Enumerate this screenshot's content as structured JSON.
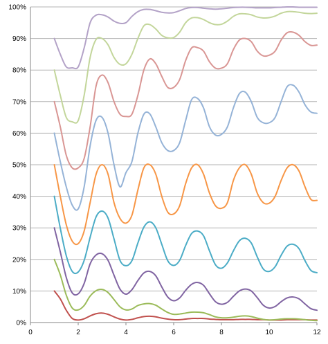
{
  "chart_data": {
    "type": "line",
    "title": "",
    "xlabel": "",
    "ylabel": "",
    "xlim": [
      0,
      12
    ],
    "ylim": [
      0,
      1
    ],
    "x_ticks": [
      "0",
      "2",
      "4",
      "6",
      "8",
      "10",
      "12"
    ],
    "y_ticks": [
      "0%",
      "10%",
      "20%",
      "30%",
      "40%",
      "50%",
      "60%",
      "70%",
      "80%",
      "90%",
      "100%"
    ],
    "grid": "horizontal",
    "legend": "none",
    "x": [
      1,
      1.25,
      1.5,
      1.75,
      2,
      2.25,
      2.5,
      2.75,
      3,
      3.25,
      3.5,
      3.75,
      4,
      4.25,
      4.5,
      4.75,
      5,
      5.25,
      5.5,
      5.75,
      6,
      6.25,
      6.5,
      6.75,
      7,
      7.25,
      7.5,
      7.75,
      8,
      8.25,
      8.5,
      8.75,
      9,
      9.25,
      9.5,
      9.75,
      10,
      10.25,
      10.5,
      10.75,
      11,
      11.25,
      11.5,
      11.75,
      12
    ],
    "series": [
      {
        "color": "#c0504d",
        "values": [
          0.1,
          0.075,
          0.039,
          0.013,
          0.008,
          0.012,
          0.021,
          0.028,
          0.03,
          0.026,
          0.018,
          0.011,
          0.008,
          0.01,
          0.015,
          0.019,
          0.02,
          0.018,
          0.014,
          0.011,
          0.009,
          0.009,
          0.011,
          0.013,
          0.013,
          0.013,
          0.011,
          0.01,
          0.009,
          0.009,
          0.009,
          0.01,
          0.01,
          0.01,
          0.009,
          0.009,
          0.008,
          0.008,
          0.008,
          0.009,
          0.009,
          0.009,
          0.009,
          0.008,
          0.008
        ]
      },
      {
        "color": "#9bbb59",
        "values": [
          0.2,
          0.151,
          0.087,
          0.046,
          0.04,
          0.054,
          0.084,
          0.101,
          0.105,
          0.095,
          0.073,
          0.05,
          0.04,
          0.043,
          0.054,
          0.059,
          0.06,
          0.055,
          0.043,
          0.032,
          0.026,
          0.027,
          0.03,
          0.033,
          0.033,
          0.031,
          0.025,
          0.018,
          0.015,
          0.015,
          0.017,
          0.02,
          0.021,
          0.019,
          0.014,
          0.01,
          0.008,
          0.009,
          0.011,
          0.012,
          0.012,
          0.011,
          0.009,
          0.007,
          0.006
        ]
      },
      {
        "color": "#8064a2",
        "values": [
          0.3,
          0.224,
          0.143,
          0.094,
          0.091,
          0.124,
          0.186,
          0.214,
          0.218,
          0.197,
          0.15,
          0.106,
          0.09,
          0.104,
          0.133,
          0.157,
          0.162,
          0.148,
          0.113,
          0.081,
          0.069,
          0.078,
          0.102,
          0.121,
          0.127,
          0.118,
          0.091,
          0.066,
          0.058,
          0.064,
          0.083,
          0.1,
          0.106,
          0.1,
          0.079,
          0.055,
          0.046,
          0.051,
          0.066,
          0.078,
          0.081,
          0.075,
          0.059,
          0.044,
          0.039
        ]
      },
      {
        "color": "#4bacc6",
        "values": [
          0.4,
          0.299,
          0.212,
          0.162,
          0.16,
          0.197,
          0.27,
          0.335,
          0.353,
          0.331,
          0.265,
          0.197,
          0.18,
          0.196,
          0.252,
          0.302,
          0.319,
          0.3,
          0.248,
          0.196,
          0.181,
          0.197,
          0.244,
          0.282,
          0.29,
          0.275,
          0.227,
          0.183,
          0.172,
          0.189,
          0.227,
          0.259,
          0.267,
          0.252,
          0.208,
          0.17,
          0.162,
          0.177,
          0.213,
          0.242,
          0.248,
          0.234,
          0.196,
          0.165,
          0.158
        ]
      },
      {
        "color": "#f79646",
        "values": [
          0.5,
          0.4,
          0.31,
          0.258,
          0.25,
          0.29,
          0.38,
          0.47,
          0.5,
          0.47,
          0.38,
          0.33,
          0.315,
          0.34,
          0.42,
          0.49,
          0.5,
          0.47,
          0.4,
          0.35,
          0.344,
          0.37,
          0.44,
          0.49,
          0.5,
          0.47,
          0.41,
          0.37,
          0.362,
          0.38,
          0.45,
          0.49,
          0.5,
          0.47,
          0.41,
          0.38,
          0.378,
          0.4,
          0.45,
          0.49,
          0.5,
          0.48,
          0.43,
          0.39,
          0.387
        ]
      },
      {
        "color": "#95b3d7",
        "values": [
          0.6,
          0.51,
          0.43,
          0.372,
          0.36,
          0.43,
          0.56,
          0.641,
          0.65,
          0.6,
          0.5,
          0.43,
          0.475,
          0.51,
          0.6,
          0.66,
          0.661,
          0.62,
          0.57,
          0.545,
          0.545,
          0.57,
          0.64,
          0.706,
          0.71,
          0.68,
          0.62,
          0.594,
          0.596,
          0.62,
          0.68,
          0.725,
          0.73,
          0.7,
          0.65,
          0.633,
          0.633,
          0.65,
          0.7,
          0.747,
          0.752,
          0.73,
          0.69,
          0.667,
          0.663
        ]
      },
      {
        "color": "#d99694",
        "values": [
          0.7,
          0.62,
          0.53,
          0.49,
          0.49,
          0.52,
          0.62,
          0.75,
          0.784,
          0.76,
          0.7,
          0.66,
          0.653,
          0.66,
          0.72,
          0.8,
          0.835,
          0.82,
          0.78,
          0.745,
          0.745,
          0.77,
          0.83,
          0.87,
          0.871,
          0.86,
          0.826,
          0.806,
          0.806,
          0.82,
          0.865,
          0.895,
          0.9,
          0.89,
          0.86,
          0.845,
          0.847,
          0.86,
          0.895,
          0.918,
          0.92,
          0.91,
          0.89,
          0.878,
          0.879
        ]
      },
      {
        "color": "#c3d69b",
        "values": [
          0.8,
          0.72,
          0.65,
          0.636,
          0.64,
          0.72,
          0.84,
          0.897,
          0.9,
          0.88,
          0.84,
          0.818,
          0.82,
          0.85,
          0.9,
          0.94,
          0.944,
          0.93,
          0.91,
          0.902,
          0.903,
          0.92,
          0.95,
          0.965,
          0.966,
          0.96,
          0.95,
          0.944,
          0.945,
          0.955,
          0.97,
          0.978,
          0.978,
          0.975,
          0.968,
          0.965,
          0.966,
          0.971,
          0.98,
          0.985,
          0.985,
          0.983,
          0.98,
          0.979,
          0.98
        ]
      },
      {
        "color": "#b3a2c7",
        "values": [
          0.9,
          0.85,
          0.81,
          0.807,
          0.81,
          0.87,
          0.95,
          0.974,
          0.975,
          0.968,
          0.955,
          0.948,
          0.95,
          0.97,
          0.985,
          0.992,
          0.992,
          0.988,
          0.983,
          0.981,
          0.982,
          0.988,
          0.995,
          0.998,
          0.998,
          0.996,
          0.994,
          0.993,
          0.994,
          0.996,
          0.998,
          0.999,
          0.999,
          0.998,
          0.997,
          0.997,
          0.997,
          0.998,
          0.999,
          1.0,
          1.0,
          0.999,
          0.999,
          0.999,
          0.999
        ]
      }
    ]
  }
}
